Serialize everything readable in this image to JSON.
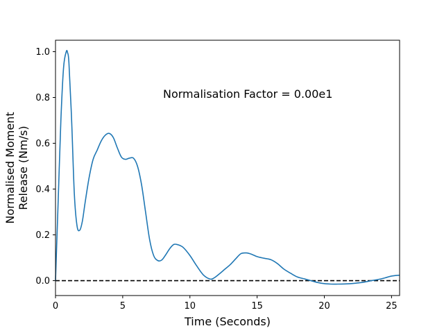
{
  "chart_data": {
    "type": "line",
    "title": "",
    "xlabel": "Time (Seconds)",
    "ylabel_lines": [
      "Normalised Moment",
      "Release (Nm/s)"
    ],
    "annotation": "Normalisation Factor = 0.00e1",
    "xlim": [
      0,
      25.6
    ],
    "ylim": [
      -0.065,
      1.05
    ],
    "x_ticks": [
      0,
      5,
      10,
      15,
      20,
      25
    ],
    "y_ticks": [
      0.0,
      0.2,
      0.4,
      0.6,
      0.8,
      1.0
    ],
    "x_tick_labels": [
      "0",
      "5",
      "10",
      "15",
      "20",
      "25"
    ],
    "y_tick_labels": [
      "0.0",
      "0.2",
      "0.4",
      "0.6",
      "0.8",
      "1.0"
    ],
    "grid": false,
    "reference_line": {
      "y": 0.0,
      "style": "dashed",
      "color": "#000000"
    },
    "series": [
      {
        "color": "#1f77b4",
        "x": [
          0,
          0.2,
          0.4,
          0.6,
          0.8,
          0.9,
          1.0,
          1.2,
          1.4,
          1.6,
          1.8,
          2.0,
          2.2,
          2.5,
          2.8,
          3.1,
          3.4,
          3.7,
          4.0,
          4.3,
          4.6,
          4.9,
          5.2,
          5.5,
          5.8,
          6.1,
          6.4,
          6.7,
          7.0,
          7.3,
          7.6,
          7.9,
          8.2,
          8.5,
          8.8,
          9.1,
          9.5,
          10.0,
          10.5,
          11.0,
          11.5,
          11.8,
          12.2,
          12.6,
          13.0,
          13.4,
          13.8,
          14.2,
          14.6,
          15.0,
          15.5,
          16.0,
          16.5,
          17.0,
          17.5,
          18.0,
          18.5,
          19.0,
          19.5,
          20.0,
          20.5,
          21.0,
          21.5,
          22.0,
          22.5,
          23.0,
          23.5,
          24.0,
          24.5,
          25.0,
          25.6
        ],
        "y": [
          0.0,
          0.35,
          0.7,
          0.93,
          1.0,
          0.995,
          0.95,
          0.7,
          0.38,
          0.24,
          0.22,
          0.26,
          0.34,
          0.45,
          0.53,
          0.57,
          0.61,
          0.635,
          0.643,
          0.625,
          0.58,
          0.54,
          0.53,
          0.535,
          0.535,
          0.5,
          0.42,
          0.3,
          0.18,
          0.11,
          0.088,
          0.09,
          0.113,
          0.14,
          0.158,
          0.157,
          0.145,
          0.11,
          0.065,
          0.025,
          0.007,
          0.012,
          0.03,
          0.05,
          0.07,
          0.095,
          0.118,
          0.121,
          0.115,
          0.105,
          0.098,
          0.092,
          0.075,
          0.05,
          0.032,
          0.016,
          0.008,
          0.0,
          -0.008,
          -0.013,
          -0.015,
          -0.015,
          -0.0145,
          -0.013,
          -0.01,
          -0.006,
          0.0,
          0.005,
          0.012,
          0.02,
          0.024
        ]
      }
    ]
  }
}
